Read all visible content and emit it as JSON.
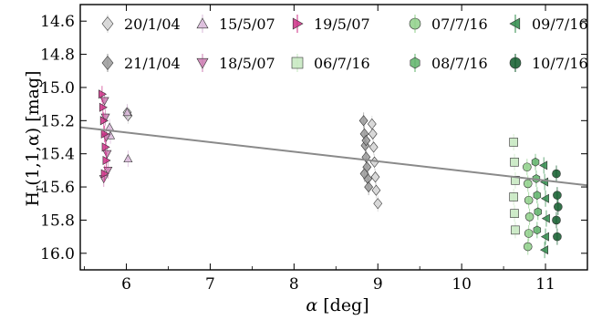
{
  "chart_data": {
    "type": "scatter",
    "xlabel_italic": "α",
    "xlabel_rest": " [deg]",
    "ylabel_main": "H",
    "ylabel_sub": "r",
    "ylabel_rest": "(1,1,α) [mag]",
    "xlim": [
      5.45,
      11.5
    ],
    "ylim": [
      16.1,
      14.5
    ],
    "y_inverted": true,
    "xticks": [
      6,
      7,
      8,
      9,
      10,
      11
    ],
    "yticks": [
      14.6,
      14.8,
      15.0,
      15.2,
      15.4,
      15.6,
      15.8,
      16.0
    ],
    "ytick_labels": [
      "14.6",
      "14.8",
      "15.0",
      "15.2",
      "15.4",
      "15.6",
      "15.8",
      "16.0"
    ],
    "xtick_labels": [
      "6",
      "7",
      "8",
      "9",
      "10",
      "11"
    ],
    "grid": false,
    "legend_placement": "top",
    "fit_line": {
      "x": [
        5.45,
        11.5
      ],
      "y": [
        15.24,
        15.59
      ],
      "color": "#8a8a8a"
    },
    "series": [
      {
        "name": "20/1/04",
        "marker": "diamond",
        "color": "#d4d4d4",
        "points": [
          [
            6.01,
            15.15
          ],
          [
            6.02,
            15.17
          ],
          [
            8.93,
            15.22
          ],
          [
            8.94,
            15.28
          ],
          [
            8.95,
            15.36
          ],
          [
            8.96,
            15.45
          ],
          [
            8.97,
            15.54
          ],
          [
            8.98,
            15.62
          ],
          [
            9.0,
            15.7
          ]
        ]
      },
      {
        "name": "21/1/04",
        "marker": "diamond",
        "color": "#9a9a9a",
        "points": [
          [
            8.83,
            15.2
          ],
          [
            8.84,
            15.28
          ],
          [
            8.85,
            15.35
          ],
          [
            8.86,
            15.42
          ],
          [
            8.87,
            15.48
          ],
          [
            8.88,
            15.55
          ],
          [
            8.89,
            15.6
          ],
          [
            8.84,
            15.52
          ],
          [
            8.86,
            15.32
          ]
        ]
      },
      {
        "name": "15/5/07",
        "marker": "triangle-up",
        "color": "#d9b8d9",
        "points": [
          [
            5.8,
            15.24
          ],
          [
            5.81,
            15.29
          ],
          [
            6.01,
            15.15
          ],
          [
            6.02,
            15.43
          ]
        ]
      },
      {
        "name": "18/5/07",
        "marker": "triangle-down",
        "color": "#cc7db3",
        "points": [
          [
            5.74,
            15.08
          ],
          [
            5.75,
            15.18
          ],
          [
            5.76,
            15.3
          ],
          [
            5.77,
            15.4
          ],
          [
            5.78,
            15.5
          ],
          [
            5.73,
            15.55
          ]
        ]
      },
      {
        "name": "19/5/07",
        "marker": "triangle-right",
        "color": "#cc2f86",
        "points": [
          [
            5.71,
            15.04
          ],
          [
            5.72,
            15.12
          ],
          [
            5.73,
            15.2
          ],
          [
            5.74,
            15.28
          ],
          [
            5.75,
            15.36
          ],
          [
            5.76,
            15.44
          ],
          [
            5.74,
            15.52
          ]
        ]
      },
      {
        "name": "06/7/16",
        "marker": "square",
        "color": "#c6e8bf",
        "points": [
          [
            10.62,
            15.33
          ],
          [
            10.63,
            15.45
          ],
          [
            10.64,
            15.56
          ],
          [
            10.62,
            15.66
          ],
          [
            10.63,
            15.76
          ],
          [
            10.64,
            15.86
          ]
        ]
      },
      {
        "name": "07/7/16",
        "marker": "circle",
        "color": "#8fd08a",
        "points": [
          [
            10.78,
            15.48
          ],
          [
            10.79,
            15.58
          ],
          [
            10.8,
            15.68
          ],
          [
            10.81,
            15.78
          ],
          [
            10.8,
            15.88
          ],
          [
            10.79,
            15.96
          ]
        ]
      },
      {
        "name": "08/7/16",
        "marker": "hexagon",
        "color": "#5fb36a",
        "points": [
          [
            10.88,
            15.45
          ],
          [
            10.89,
            15.55
          ],
          [
            10.9,
            15.65
          ],
          [
            10.91,
            15.75
          ],
          [
            10.9,
            15.86
          ]
        ]
      },
      {
        "name": "09/7/16",
        "marker": "triangle-left",
        "color": "#2e8b4a",
        "points": [
          [
            10.98,
            15.47
          ],
          [
            10.99,
            15.57
          ],
          [
            11.0,
            15.67
          ],
          [
            11.01,
            15.79
          ],
          [
            11.0,
            15.9
          ],
          [
            10.99,
            15.98
          ]
        ]
      },
      {
        "name": "10/7/16",
        "marker": "circle",
        "color": "#0f5a2a",
        "points": [
          [
            11.13,
            15.52
          ],
          [
            11.14,
            15.65
          ],
          [
            11.15,
            15.72
          ],
          [
            11.13,
            15.8
          ],
          [
            11.14,
            15.9
          ]
        ]
      }
    ]
  }
}
